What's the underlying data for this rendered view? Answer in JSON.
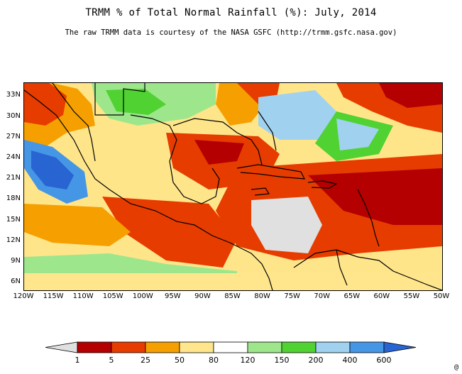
{
  "header": {
    "title": "TRMM % of Total Normal Rainfall (%):  July, 2014",
    "subtitle": "The raw TRMM data is courtesy of the NASA GSFC (http://trmm.gsfc.nasa.gov)"
  },
  "map": {
    "lat_ticks": [
      "33N",
      "30N",
      "27N",
      "24N",
      "21N",
      "18N",
      "15N",
      "12N",
      "9N",
      "6N"
    ],
    "lat_values": [
      33,
      30,
      27,
      24,
      21,
      18,
      15,
      12,
      9,
      6
    ],
    "lon_ticks": [
      "120W",
      "115W",
      "110W",
      "105W",
      "100W",
      "95W",
      "90W",
      "85W",
      "80W",
      "75W",
      "70W",
      "65W",
      "60W",
      "55W",
      "50W"
    ],
    "lon_values": [
      -120,
      -115,
      -110,
      -105,
      -100,
      -95,
      -90,
      -85,
      -80,
      -75,
      -70,
      -65,
      -60,
      -55,
      -50
    ],
    "lat_range": [
      5,
      35
    ],
    "lon_range": [
      -120,
      -50
    ]
  },
  "legend": {
    "labels": [
      "1",
      "5",
      "25",
      "50",
      "80",
      "120",
      "150",
      "200",
      "400",
      "600"
    ],
    "colors": {
      "below_1": "#e0e0e0",
      "c1_5": "#b40000",
      "c5_25": "#e63c00",
      "c25_50": "#f5a000",
      "c50_80": "#ffe68c",
      "c80_120": "#ffffff",
      "c120_150": "#9ee68c",
      "c150_200": "#50d232",
      "c200_400": "#a0d2f0",
      "c400_600": "#4696e6",
      "above_600": "#2864d2"
    }
  },
  "corner_mark": "@"
}
